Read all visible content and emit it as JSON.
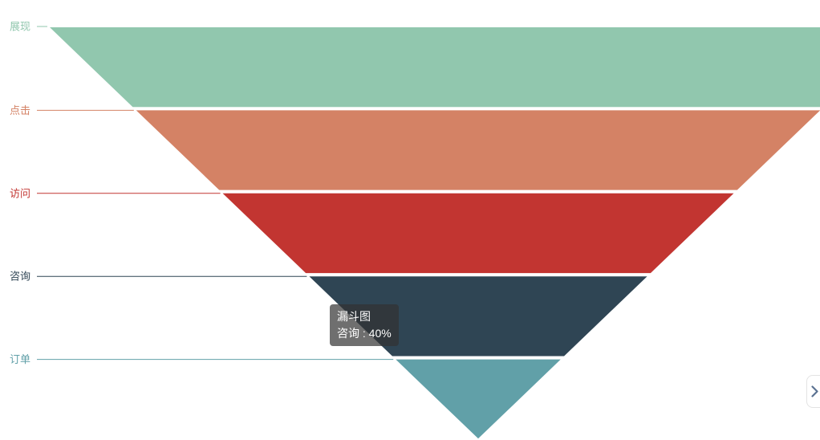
{
  "chart_data": {
    "type": "funnel",
    "series_name": "漏斗图",
    "sort": "descending",
    "shape": "inverted-triangle",
    "min_size_percent": 0,
    "max_size_percent": 100,
    "unit": "%",
    "legend_position": "none",
    "label_position": "left",
    "categories": [
      "展现",
      "点击",
      "访问",
      "咨询",
      "订单"
    ],
    "values": [
      100,
      80,
      60,
      40,
      20
    ],
    "items": [
      {
        "name": "展现",
        "value": 100,
        "color": "#91c7ae"
      },
      {
        "name": "点击",
        "value": 80,
        "color": "#d48265"
      },
      {
        "name": "访问",
        "value": 60,
        "color": "#c23531"
      },
      {
        "name": "咨询",
        "value": 40,
        "color": "#2f4554"
      },
      {
        "name": "订单",
        "value": 20,
        "color": "#61a0a8"
      }
    ],
    "segment_border_color": "#ffffff"
  },
  "tooltip": {
    "visible": true,
    "title": "漏斗图",
    "item_name": "咨询",
    "item_value": "40%",
    "value_text": "咨询 : 40%",
    "background": "rgba(50,50,50,0.7)",
    "text_color": "#ffffff"
  },
  "side_nav": {
    "chevron_color": "#5b7292"
  }
}
